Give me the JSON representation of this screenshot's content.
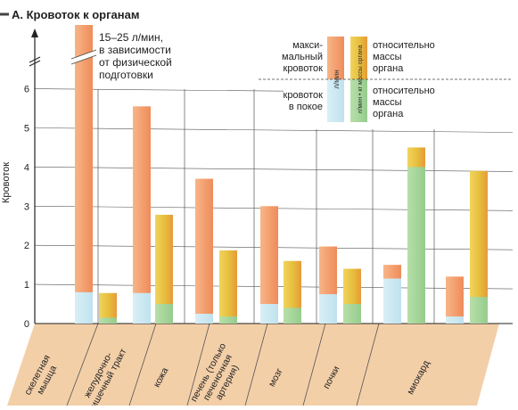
{
  "title": "А. Кровоток к органам",
  "annotation": "15–25 л/мин,\nв зависимости\nот физической\nподготовки",
  "legend": {
    "max_label": "макси-\nмальный\nкровоток",
    "rest_label": "кровоток\nв покое",
    "per_mass_top": "относительно\nмассы\nоргана",
    "per_mass_bottom": "относительно\nмассы\nоргана",
    "unit_abs": "л/мин",
    "unit_rel": "л/мин • кг массы органа"
  },
  "colors": {
    "abs_max": "#f4a070",
    "abs_rest": "#bfe2ee",
    "rel_max": "#e6be3c",
    "rel_rest": "#96cc8e",
    "ground": "#f3cfa8",
    "axis": "#222222",
    "title_bar": "#444444"
  },
  "chart_data": {
    "type": "bar",
    "ylabel": "Кровоток",
    "yticks": [
      "0",
      "1",
      "2",
      "3",
      "4",
      "5",
      "6"
    ],
    "ylim": [
      0,
      6.8
    ],
    "axis_break": true,
    "categories": [
      "скелетная\nмышца",
      "желудочно-\nкишечный тракт",
      "кожа",
      "печень (только\nпеченочная\nартерия)",
      "мозг",
      "почки",
      "миокард"
    ],
    "series": [
      {
        "name": "л/мин",
        "values": [
          20.0,
          5.55,
          3.7,
          3.0,
          1.97,
          1.5,
          1.2
        ]
      },
      {
        "name": "л/мин",
        "values": [
          0.8,
          0.78,
          0.25,
          0.5,
          0.75,
          1.15,
          0.18
        ]
      },
      {
        "name": "л/мин • кг массы органа",
        "values": [
          0.78,
          2.78,
          1.87,
          1.6,
          1.4,
          4.5,
          3.9
        ]
      },
      {
        "name": "л/мин • кг массы органа",
        "values": [
          0.15,
          0.5,
          0.18,
          0.4,
          0.5,
          4.0,
          0.68
        ]
      }
    ]
  }
}
